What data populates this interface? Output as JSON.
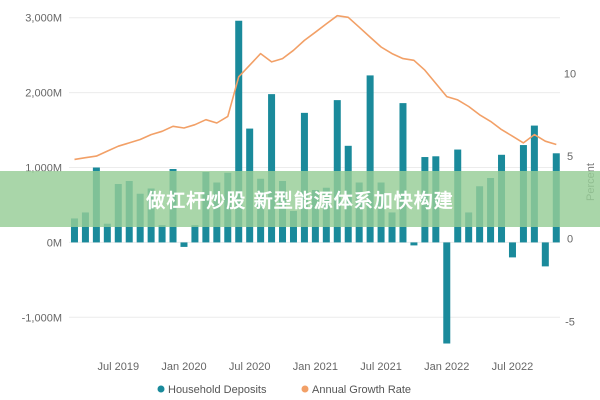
{
  "chart_data": {
    "type": "bar",
    "left_axis": {
      "ticks": [
        3000,
        2000,
        1000,
        0,
        -1000
      ],
      "tick_labels": [
        "3,000M",
        "2,000M",
        "1,000M",
        "0M",
        "-1,000M"
      ],
      "range": [
        -1450,
        3050
      ]
    },
    "right_axis": {
      "label": "Percent",
      "ticks": [
        10,
        5,
        0,
        -5
      ],
      "tick_labels": [
        "10",
        "5",
        "0",
        "-5"
      ],
      "range": [
        -6.8,
        13.6
      ]
    },
    "x_ticks": [
      {
        "index": 4,
        "label": "Jul 2019"
      },
      {
        "index": 10,
        "label": "Jan 2020"
      },
      {
        "index": 16,
        "label": "Jul 2020"
      },
      {
        "index": 22,
        "label": "Jan 2021"
      },
      {
        "index": 28,
        "label": "Jul 2021"
      },
      {
        "index": 34,
        "label": "Jan 2022"
      },
      {
        "index": 40,
        "label": "Jul 2022"
      }
    ],
    "series": [
      {
        "name": "Household Deposits",
        "type": "bar",
        "color": "#1a8a9b",
        "values": [
          320,
          400,
          1000,
          250,
          780,
          820,
          650,
          720,
          230,
          980,
          -60,
          230,
          940,
          800,
          930,
          2960,
          1520,
          850,
          1980,
          820,
          420,
          1730,
          700,
          730,
          1900,
          1290,
          800,
          2230,
          800,
          400,
          1860,
          -40,
          1140,
          1150,
          -1350,
          1240,
          400,
          750,
          860,
          1170,
          -200,
          1300,
          1560,
          -320,
          1190
        ]
      },
      {
        "name": "Annual Growth Rate",
        "type": "line",
        "color": "#f2a067",
        "values": [
          4.8,
          4.9,
          5.0,
          5.3,
          5.6,
          5.8,
          6.0,
          6.3,
          6.5,
          6.8,
          6.7,
          6.9,
          7.2,
          7.0,
          7.4,
          9.8,
          10.5,
          11.2,
          10.7,
          10.9,
          11.4,
          12.0,
          12.5,
          13.0,
          13.5,
          13.4,
          12.8,
          12.2,
          11.6,
          11.2,
          10.9,
          10.8,
          10.2,
          9.4,
          8.6,
          8.4,
          8.0,
          7.5,
          7.1,
          6.6,
          6.2,
          5.8,
          6.3,
          5.9,
          5.7
        ]
      }
    ],
    "legend": [
      "Household Deposits",
      "Annual Growth Rate"
    ],
    "legend_position": "bottom"
  },
  "banner": {
    "text": "做杠杆炒股 新型能源体系加快构建"
  }
}
